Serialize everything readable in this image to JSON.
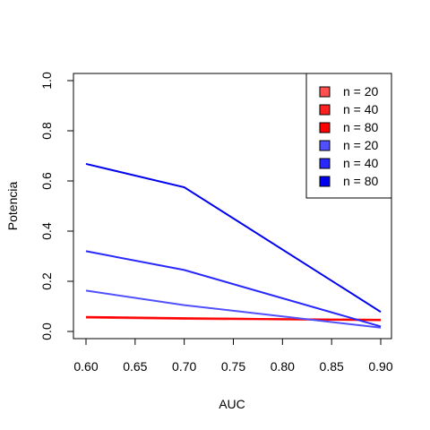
{
  "chart_data": {
    "type": "line",
    "title": "",
    "xlabel": "AUC",
    "ylabel": "Potencia",
    "x": [
      0.6,
      0.7,
      0.9
    ],
    "xlim": [
      0.6,
      0.9
    ],
    "ylim": [
      0.0,
      1.0
    ],
    "xticks": [
      "0.60",
      "0.65",
      "0.70",
      "0.75",
      "0.80",
      "0.85",
      "0.90"
    ],
    "yticks": [
      "0.0",
      "0.2",
      "0.4",
      "0.6",
      "0.8",
      "1.0"
    ],
    "grid": false,
    "legend_position": "top-right",
    "series": [
      {
        "name": "n = 20",
        "color": "#ff5050",
        "values": [
          0.055,
          0.05,
          0.045
        ]
      },
      {
        "name": "n = 40",
        "color": "#ff2020",
        "values": [
          0.057,
          0.052,
          0.047
        ]
      },
      {
        "name": "n = 80",
        "color": "#ff0000",
        "values": [
          0.058,
          0.053,
          0.045
        ]
      },
      {
        "name": "n = 20",
        "color": "#5050ff",
        "values": [
          0.163,
          0.105,
          0.015
        ]
      },
      {
        "name": "n = 40",
        "color": "#2828ff",
        "values": [
          0.32,
          0.245,
          0.02
        ]
      },
      {
        "name": "n = 80",
        "color": "#0000ee",
        "values": [
          0.668,
          0.575,
          0.078
        ]
      }
    ]
  }
}
